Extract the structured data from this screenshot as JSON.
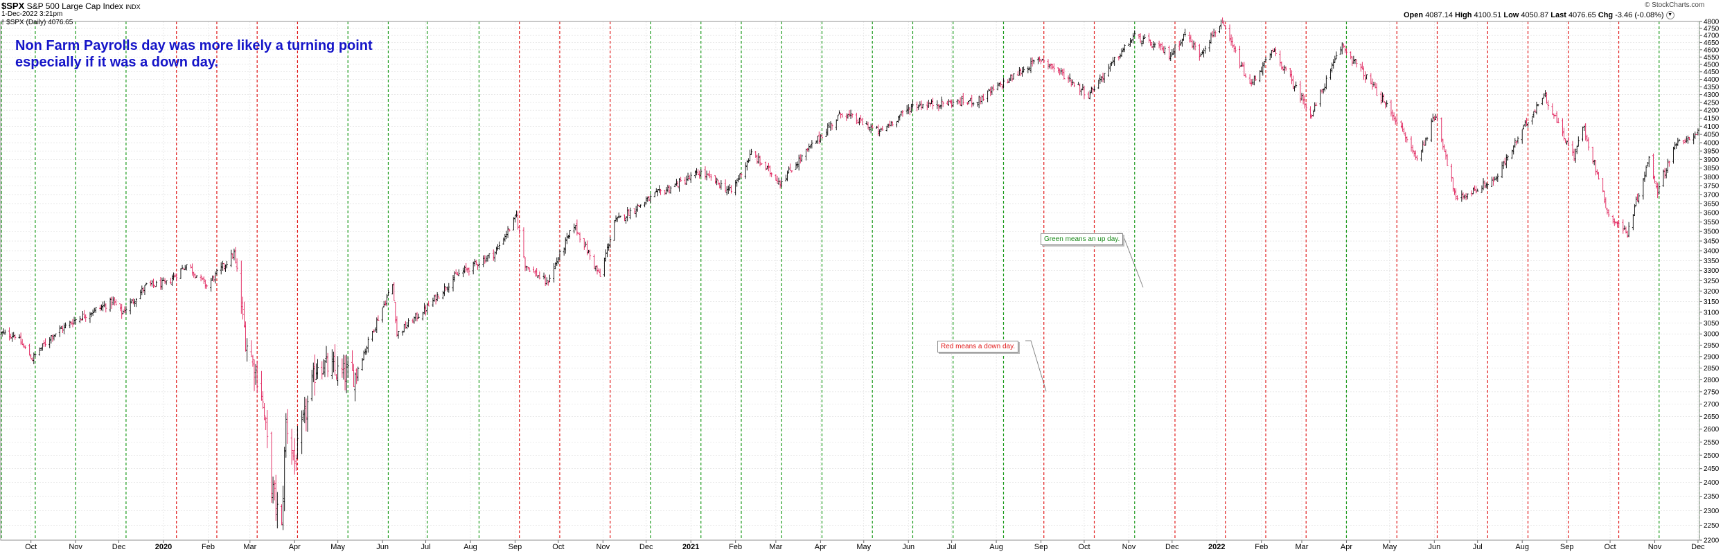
{
  "header": {
    "symbol": "$SPX",
    "name": "S&P 500 Large Cap Index",
    "exchange": "INDX",
    "datetime": "1-Dec-2022 3:21pm",
    "legend": "$SPX (Daily) 4076.65",
    "watermark": "© StockCharts.com",
    "quote": {
      "open_label": "Open",
      "open": "4087.14",
      "high_label": "High",
      "high": "4100.51",
      "low_label": "Low",
      "low": "4050.87",
      "last_label": "Last",
      "last": "4076.65",
      "chg_label": "Chg",
      "chg": "-3.46 (-0.08%)"
    }
  },
  "annotation": {
    "line1": "Non Farm Payrolls day was more likely a turning point",
    "line2": "especially if it was a down day.",
    "color": "#1414c8"
  },
  "callouts": {
    "green": "Green means an up day.",
    "red": "Red means a down day."
  },
  "colors": {
    "up": "#000000",
    "down": "#e0205a",
    "green_line": "#1a9a1a",
    "red_line": "#e01a1a",
    "grid": "#dcdcdc"
  },
  "chart_data": {
    "type": "ohlc",
    "title": "$SPX S&P 500 Large Cap Index INDX",
    "ylim": [
      2200,
      4800
    ],
    "y_scale": "log",
    "y_ticks": [
      2200,
      2250,
      2300,
      2350,
      2400,
      2450,
      2500,
      2550,
      2600,
      2650,
      2700,
      2750,
      2800,
      2850,
      2900,
      2950,
      3000,
      3050,
      3100,
      3150,
      3200,
      3250,
      3300,
      3350,
      3400,
      3450,
      3500,
      3550,
      3600,
      3650,
      3700,
      3750,
      3800,
      3850,
      3900,
      3950,
      4000,
      4050,
      4100,
      4150,
      4200,
      4250,
      4300,
      4350,
      4400,
      4450,
      4500,
      4550,
      4600,
      4650,
      4700,
      4750,
      4800
    ],
    "x_labels": [
      {
        "label": "Oct",
        "date": "2019-10-01"
      },
      {
        "label": "Nov",
        "date": "2019-11-01"
      },
      {
        "label": "Dec",
        "date": "2019-12-01"
      },
      {
        "label": "2020",
        "date": "2020-01-01",
        "bold": true
      },
      {
        "label": "Feb",
        "date": "2020-02-01"
      },
      {
        "label": "Mar",
        "date": "2020-03-01"
      },
      {
        "label": "Apr",
        "date": "2020-04-01"
      },
      {
        "label": "May",
        "date": "2020-05-01"
      },
      {
        "label": "Jun",
        "date": "2020-06-01"
      },
      {
        "label": "Jul",
        "date": "2020-07-01"
      },
      {
        "label": "Aug",
        "date": "2020-08-01"
      },
      {
        "label": "Sep",
        "date": "2020-09-01"
      },
      {
        "label": "Oct",
        "date": "2020-10-01"
      },
      {
        "label": "Nov",
        "date": "2020-11-01"
      },
      {
        "label": "Dec",
        "date": "2020-12-01"
      },
      {
        "label": "2021",
        "date": "2021-01-01",
        "bold": true
      },
      {
        "label": "Feb",
        "date": "2021-02-01"
      },
      {
        "label": "Mar",
        "date": "2021-03-01"
      },
      {
        "label": "Apr",
        "date": "2021-04-01"
      },
      {
        "label": "May",
        "date": "2021-05-01"
      },
      {
        "label": "Jun",
        "date": "2021-06-01"
      },
      {
        "label": "Jul",
        "date": "2021-07-01"
      },
      {
        "label": "Aug",
        "date": "2021-08-01"
      },
      {
        "label": "Sep",
        "date": "2021-09-01"
      },
      {
        "label": "Oct",
        "date": "2021-10-01"
      },
      {
        "label": "Nov",
        "date": "2021-11-01"
      },
      {
        "label": "Dec",
        "date": "2021-12-01"
      },
      {
        "label": "2022",
        "date": "2022-01-01",
        "bold": true
      },
      {
        "label": "Feb",
        "date": "2022-02-01"
      },
      {
        "label": "Mar",
        "date": "2022-03-01"
      },
      {
        "label": "Apr",
        "date": "2022-04-01"
      },
      {
        "label": "May",
        "date": "2022-05-01"
      },
      {
        "label": "Jun",
        "date": "2022-06-01"
      },
      {
        "label": "Jul",
        "date": "2022-07-01"
      },
      {
        "label": "Aug",
        "date": "2022-08-01"
      },
      {
        "label": "Sep",
        "date": "2022-09-01"
      },
      {
        "label": "Oct",
        "date": "2022-10-01"
      },
      {
        "label": "Nov",
        "date": "2022-11-01"
      },
      {
        "label": "Dec",
        "date": "2022-12-01"
      }
    ],
    "x_range": [
      "2019-09-10",
      "2022-12-02"
    ],
    "nfp_days": [
      {
        "date": "2019-09-06",
        "dir": "up"
      },
      {
        "date": "2019-10-04",
        "dir": "up"
      },
      {
        "date": "2019-11-01",
        "dir": "up"
      },
      {
        "date": "2019-12-06",
        "dir": "up"
      },
      {
        "date": "2020-01-10",
        "dir": "down"
      },
      {
        "date": "2020-02-07",
        "dir": "down"
      },
      {
        "date": "2020-03-06",
        "dir": "down"
      },
      {
        "date": "2020-04-03",
        "dir": "down"
      },
      {
        "date": "2020-05-08",
        "dir": "up"
      },
      {
        "date": "2020-06-05",
        "dir": "up"
      },
      {
        "date": "2020-07-02",
        "dir": "up"
      },
      {
        "date": "2020-08-07",
        "dir": "up"
      },
      {
        "date": "2020-09-04",
        "dir": "down"
      },
      {
        "date": "2020-10-02",
        "dir": "down"
      },
      {
        "date": "2020-11-06",
        "dir": "down"
      },
      {
        "date": "2020-12-04",
        "dir": "up"
      },
      {
        "date": "2021-01-08",
        "dir": "up"
      },
      {
        "date": "2021-02-05",
        "dir": "up"
      },
      {
        "date": "2021-03-05",
        "dir": "up"
      },
      {
        "date": "2021-04-02",
        "dir": "up"
      },
      {
        "date": "2021-05-07",
        "dir": "up"
      },
      {
        "date": "2021-06-04",
        "dir": "up"
      },
      {
        "date": "2021-07-02",
        "dir": "up"
      },
      {
        "date": "2021-08-06",
        "dir": "up"
      },
      {
        "date": "2021-09-03",
        "dir": "down"
      },
      {
        "date": "2021-10-08",
        "dir": "down"
      },
      {
        "date": "2021-11-05",
        "dir": "up"
      },
      {
        "date": "2021-12-03",
        "dir": "down"
      },
      {
        "date": "2022-01-07",
        "dir": "down"
      },
      {
        "date": "2022-02-04",
        "dir": "down"
      },
      {
        "date": "2022-03-04",
        "dir": "down"
      },
      {
        "date": "2022-04-01",
        "dir": "up"
      },
      {
        "date": "2022-05-06",
        "dir": "down"
      },
      {
        "date": "2022-06-03",
        "dir": "down"
      },
      {
        "date": "2022-07-08",
        "dir": "down"
      },
      {
        "date": "2022-08-05",
        "dir": "down"
      },
      {
        "date": "2022-09-02",
        "dir": "down"
      },
      {
        "date": "2022-10-07",
        "dir": "down"
      },
      {
        "date": "2022-11-04",
        "dir": "up"
      },
      {
        "date": "2022-12-02",
        "dir": "up"
      }
    ],
    "price_path": [
      [
        "2019-09-10",
        3000
      ],
      [
        "2019-09-20",
        2995
      ],
      [
        "2019-10-02",
        2890
      ],
      [
        "2019-10-15",
        2990
      ],
      [
        "2019-11-01",
        3066
      ],
      [
        "2019-11-27",
        3150
      ],
      [
        "2019-12-03",
        3095
      ],
      [
        "2019-12-20",
        3225
      ],
      [
        "2020-01-03",
        3235
      ],
      [
        "2020-01-17",
        3330
      ],
      [
        "2020-01-31",
        3225
      ],
      [
        "2020-02-19",
        3386
      ],
      [
        "2020-02-27",
        2980
      ],
      [
        "2020-03-09",
        2750
      ],
      [
        "2020-03-16",
        2390
      ],
      [
        "2020-03-23",
        2237
      ],
      [
        "2020-03-26",
        2630
      ],
      [
        "2020-04-01",
        2470
      ],
      [
        "2020-04-17",
        2875
      ],
      [
        "2020-05-01",
        2830
      ],
      [
        "2020-05-13",
        2820
      ],
      [
        "2020-06-08",
        3232
      ],
      [
        "2020-06-11",
        3000
      ],
      [
        "2020-07-01",
        3115
      ],
      [
        "2020-07-22",
        3275
      ],
      [
        "2020-08-18",
        3390
      ],
      [
        "2020-09-02",
        3580
      ],
      [
        "2020-09-08",
        3330
      ],
      [
        "2020-09-23",
        3237
      ],
      [
        "2020-10-12",
        3535
      ],
      [
        "2020-10-30",
        3270
      ],
      [
        "2020-11-09",
        3550
      ],
      [
        "2020-12-08",
        3700
      ],
      [
        "2021-01-08",
        3825
      ],
      [
        "2021-01-29",
        3715
      ],
      [
        "2021-02-12",
        3935
      ],
      [
        "2021-03-04",
        3770
      ],
      [
        "2021-04-16",
        4185
      ],
      [
        "2021-05-12",
        4063
      ],
      [
        "2021-06-04",
        4230
      ],
      [
        "2021-07-19",
        4260
      ],
      [
        "2021-08-27",
        4510
      ],
      [
        "2021-09-02",
        4537
      ],
      [
        "2021-10-04",
        4300
      ],
      [
        "2021-11-05",
        4697
      ],
      [
        "2021-11-30",
        4567
      ],
      [
        "2021-12-10",
        4712
      ],
      [
        "2021-12-20",
        4568
      ],
      [
        "2022-01-04",
        4793
      ],
      [
        "2022-01-24",
        4356
      ],
      [
        "2022-02-09",
        4590
      ],
      [
        "2022-03-08",
        4170
      ],
      [
        "2022-03-29",
        4632
      ],
      [
        "2022-05-05",
        4147
      ],
      [
        "2022-05-20",
        3900
      ],
      [
        "2022-06-02",
        4176
      ],
      [
        "2022-06-16",
        3667
      ],
      [
        "2022-07-14",
        3790
      ],
      [
        "2022-08-16",
        4305
      ],
      [
        "2022-09-06",
        3908
      ],
      [
        "2022-09-12",
        4110
      ],
      [
        "2022-09-30",
        3585
      ],
      [
        "2022-10-13",
        3491
      ],
      [
        "2022-10-28",
        3901
      ],
      [
        "2022-11-03",
        3720
      ],
      [
        "2022-11-15",
        3991
      ],
      [
        "2022-11-22",
        4003
      ],
      [
        "2022-12-01",
        4076
      ]
    ]
  }
}
